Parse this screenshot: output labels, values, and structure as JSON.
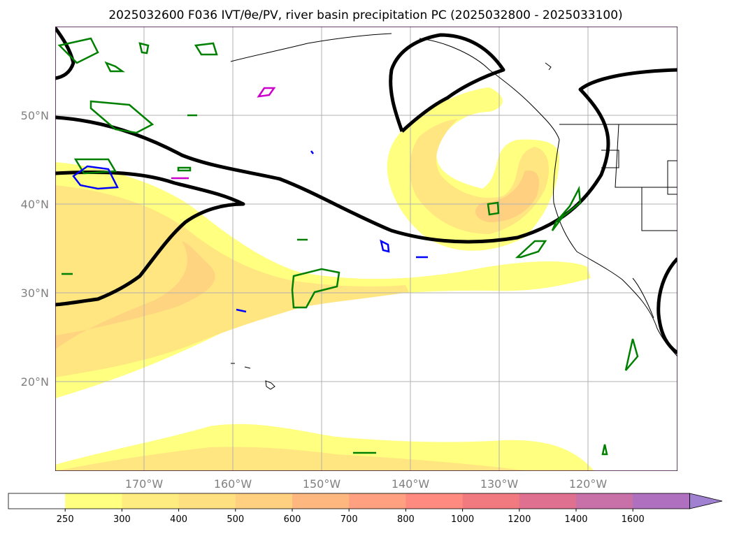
{
  "title": "2025032600 F036 IVT/θe/PV, river basin precipitation PC (2025032800 - 2025033100)",
  "map": {
    "lon_labels": [
      "170°W",
      "160°W",
      "150°W",
      "140°W",
      "130°W",
      "120°W"
    ],
    "lat_labels": [
      "50°N",
      "40°N",
      "30°N",
      "20°N"
    ]
  },
  "colorbar": {
    "ticks": [
      "250",
      "300",
      "400",
      "500",
      "600",
      "700",
      "800",
      "1000",
      "1200",
      "1400",
      "1600"
    ],
    "colors": [
      "#ffffff",
      "#ffff80",
      "#ffec80",
      "#ffe080",
      "#ffd080",
      "#ffb780",
      "#ffa080",
      "#ff8a80",
      "#f07a80",
      "#e07090",
      "#c870a8",
      "#b070c0",
      "#a080d0"
    ]
  },
  "colors": {
    "ivt_low": "#ffff80",
    "ivt_mid": "#ffe680",
    "ivt_high": "#ffd080",
    "theta_e_contour": "#000000",
    "pv_green": "#008000",
    "pv_blue": "#0000ff",
    "pv_magenta": "#cc00cc",
    "grid": "#b0b0b0",
    "frame": "#330033"
  }
}
